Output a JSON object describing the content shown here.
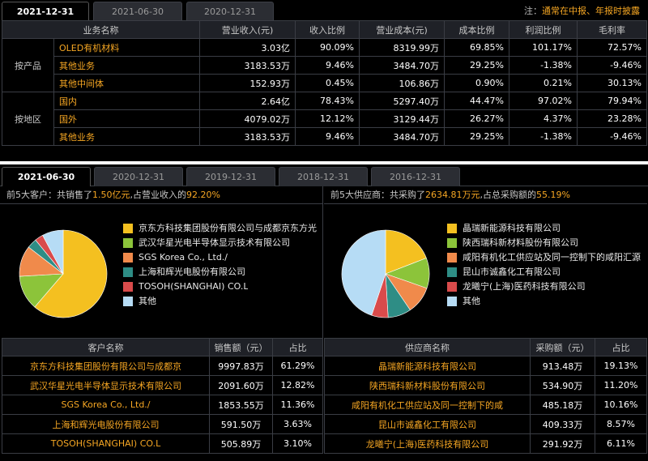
{
  "top": {
    "tabs": [
      "2021-12-31",
      "2021-06-30",
      "2020-12-31"
    ],
    "note_prefix": "注：",
    "note_text": "通常在中报、年报时披露",
    "headers": [
      "业务名称",
      "营业收入(元)",
      "收入比例",
      "营业成本(元)",
      "成本比例",
      "利润比例",
      "毛利率"
    ],
    "groups": [
      {
        "label": "按产品",
        "rows": [
          {
            "name": "OLED有机材料",
            "revenue": "3.03亿",
            "revenue_ratio": "90.09%",
            "cost": "8319.99万",
            "cost_ratio": "69.85%",
            "profit_ratio": "101.17%",
            "gross_margin": "72.57%"
          },
          {
            "name": "其他业务",
            "revenue": "3183.53万",
            "revenue_ratio": "9.46%",
            "cost": "3484.70万",
            "cost_ratio": "29.25%",
            "profit_ratio": "-1.38%",
            "gross_margin": "-9.46%"
          },
          {
            "name": "其他中间体",
            "revenue": "152.93万",
            "revenue_ratio": "0.45%",
            "cost": "106.86万",
            "cost_ratio": "0.90%",
            "profit_ratio": "0.21%",
            "gross_margin": "30.13%"
          }
        ]
      },
      {
        "label": "按地区",
        "rows": [
          {
            "name": "国内",
            "revenue": "2.64亿",
            "revenue_ratio": "78.43%",
            "cost": "5297.40万",
            "cost_ratio": "44.47%",
            "profit_ratio": "97.02%",
            "gross_margin": "79.94%"
          },
          {
            "name": "国外",
            "revenue": "4079.02万",
            "revenue_ratio": "12.12%",
            "cost": "3129.44万",
            "cost_ratio": "26.27%",
            "profit_ratio": "4.37%",
            "gross_margin": "23.28%"
          },
          {
            "name": "其他业务",
            "revenue": "3183.53万",
            "revenue_ratio": "9.46%",
            "cost": "3484.70万",
            "cost_ratio": "29.25%",
            "profit_ratio": "-1.38%",
            "gross_margin": "-9.46%"
          }
        ]
      }
    ]
  },
  "bottom": {
    "tabs": [
      "2021-06-30",
      "2020-12-31",
      "2019-12-31",
      "2018-12-31",
      "2016-12-31"
    ],
    "customers": {
      "summary_1": "前5大客户：共销售了",
      "summary_amount": "1.50亿元",
      "summary_2": ",占营业收入的",
      "summary_pct": "92.20%",
      "headers": [
        "客户名称",
        "销售额（元）",
        "占比"
      ],
      "rows": [
        {
          "name": "京东方科技集团股份有限公司与成都京",
          "amount": "9997.83万",
          "pct": "61.29%"
        },
        {
          "name": "武汉华星光电半导体显示技术有限公司",
          "amount": "2091.60万",
          "pct": "12.82%"
        },
        {
          "name": "SGS Korea Co., Ltd./",
          "amount": "1853.55万",
          "pct": "11.36%"
        },
        {
          "name": "上海和辉光电股份有限公司",
          "amount": "591.50万",
          "pct": "3.63%"
        },
        {
          "name": "TOSOH(SHANGHAI) CO.L",
          "amount": "505.89万",
          "pct": "3.10%"
        }
      ],
      "legend": [
        "京东方科技集团股份有限公司与成都京东方光",
        "武汉华星光电半导体显示技术有限公司",
        "SGS Korea Co., Ltd./",
        "上海和辉光电股份有限公司",
        "TOSOH(SHANGHAI) CO.L",
        "其他"
      ]
    },
    "suppliers": {
      "summary_1": "前5大供应商：共采购了",
      "summary_amount": "2634.81万元",
      "summary_2": ",占总采购额的",
      "summary_pct": "55.19%",
      "headers": [
        "供应商名称",
        "采购额（元）",
        "占比"
      ],
      "rows": [
        {
          "name": "晶瑞新能源科技有限公司",
          "amount": "913.48万",
          "pct": "19.13%"
        },
        {
          "name": "陕西瑞科新材料股份有限公司",
          "amount": "534.90万",
          "pct": "11.20%"
        },
        {
          "name": "咸阳有机化工供应站及同一控制下的咸",
          "amount": "485.18万",
          "pct": "10.16%"
        },
        {
          "name": "昆山市诚鑫化工有限公司",
          "amount": "409.33万",
          "pct": "8.57%"
        },
        {
          "name": "龙曦宁(上海)医药科技有限公司",
          "amount": "291.92万",
          "pct": "6.11%"
        }
      ],
      "legend": [
        "晶瑞新能源科技有限公司",
        "陕西瑞科新材料股份有限公司",
        "咸阳有机化工供应站及同一控制下的咸阳汇源",
        "昆山市诚鑫化工有限公司",
        "龙曦宁(上海)医药科技有限公司",
        "其他"
      ]
    }
  },
  "colors": {
    "slice_1": "#f4c020",
    "slice_2": "#8cc43a",
    "slice_3": "#f08a4b",
    "slice_4": "#2e8d85",
    "slice_5": "#d94b4b",
    "slice_other": "#b6dcf5",
    "accent": "#f5a623"
  },
  "chart_data": [
    {
      "type": "pie",
      "title": "",
      "labels": [
        "京东方科技集团股份有限公司与成都京东方光",
        "武汉华星光电半导体显示技术有限公司",
        "SGS Korea Co., Ltd./",
        "上海和辉光电股份有限公司",
        "TOSOH(SHANGHAI) CO.L",
        "其他"
      ],
      "values": [
        61.29,
        12.82,
        11.36,
        3.63,
        3.1,
        7.8
      ]
    },
    {
      "type": "pie",
      "title": "",
      "labels": [
        "晶瑞新能源科技有限公司",
        "陕西瑞科新材料股份有限公司",
        "咸阳有机化工供应站及同一控制下的咸阳汇源",
        "昆山市诚鑫化工有限公司",
        "龙曦宁(上海)医药科技有限公司",
        "其他"
      ],
      "values": [
        19.13,
        11.2,
        10.16,
        8.57,
        6.11,
        44.83
      ]
    }
  ]
}
